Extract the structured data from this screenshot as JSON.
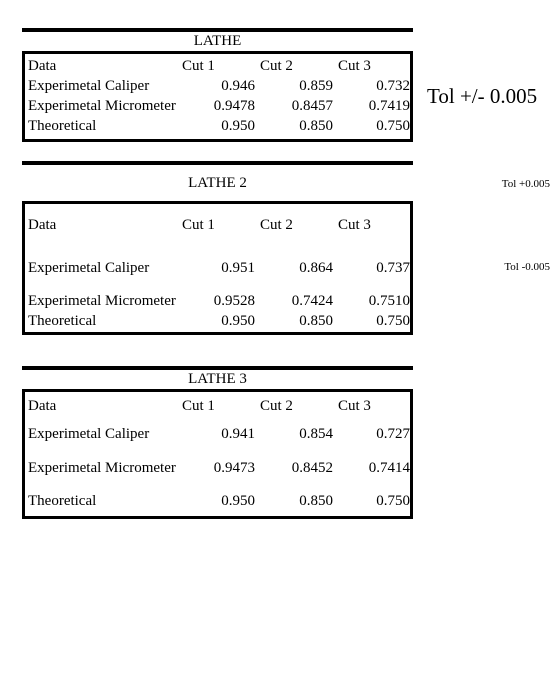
{
  "headers": [
    "Data",
    "Cut 1",
    "Cut 2",
    "Cut 3"
  ],
  "tables": [
    {
      "title": "LATHE",
      "rows": [
        {
          "label": "Experimetal Caliper",
          "values": [
            "0.946",
            "0.859",
            "0.732"
          ]
        },
        {
          "label": "Experimetal Micrometer",
          "values": [
            "0.9478",
            "0.8457",
            "0.7419"
          ]
        },
        {
          "label": "Theoretical",
          "values": [
            "0.950",
            "0.850",
            "0.750"
          ]
        }
      ]
    },
    {
      "title": "LATHE 2",
      "rows": [
        {
          "label": "Experimetal Caliper",
          "values": [
            "0.951",
            "0.864",
            "0.737"
          ]
        },
        {
          "label": "Experimetal Micrometer",
          "values": [
            "0.9528",
            "0.7424",
            "0.7510"
          ]
        },
        {
          "label": "Theoretical",
          "values": [
            "0.950",
            "0.850",
            "0.750"
          ]
        }
      ]
    },
    {
      "title": "LATHE 3",
      "rows": [
        {
          "label": "Experimetal Caliper",
          "values": [
            "0.941",
            "0.854",
            "0.727"
          ]
        },
        {
          "label": "Experimetal Micrometer",
          "values": [
            "0.9473",
            "0.8452",
            "0.7414"
          ]
        },
        {
          "label": "Theoretical",
          "values": [
            "0.950",
            "0.850",
            "0.750"
          ]
        }
      ]
    }
  ],
  "tolerance": {
    "main": "Tol +/-  0.005",
    "plus": "Tol +0.005",
    "minus": "Tol -0.005"
  }
}
